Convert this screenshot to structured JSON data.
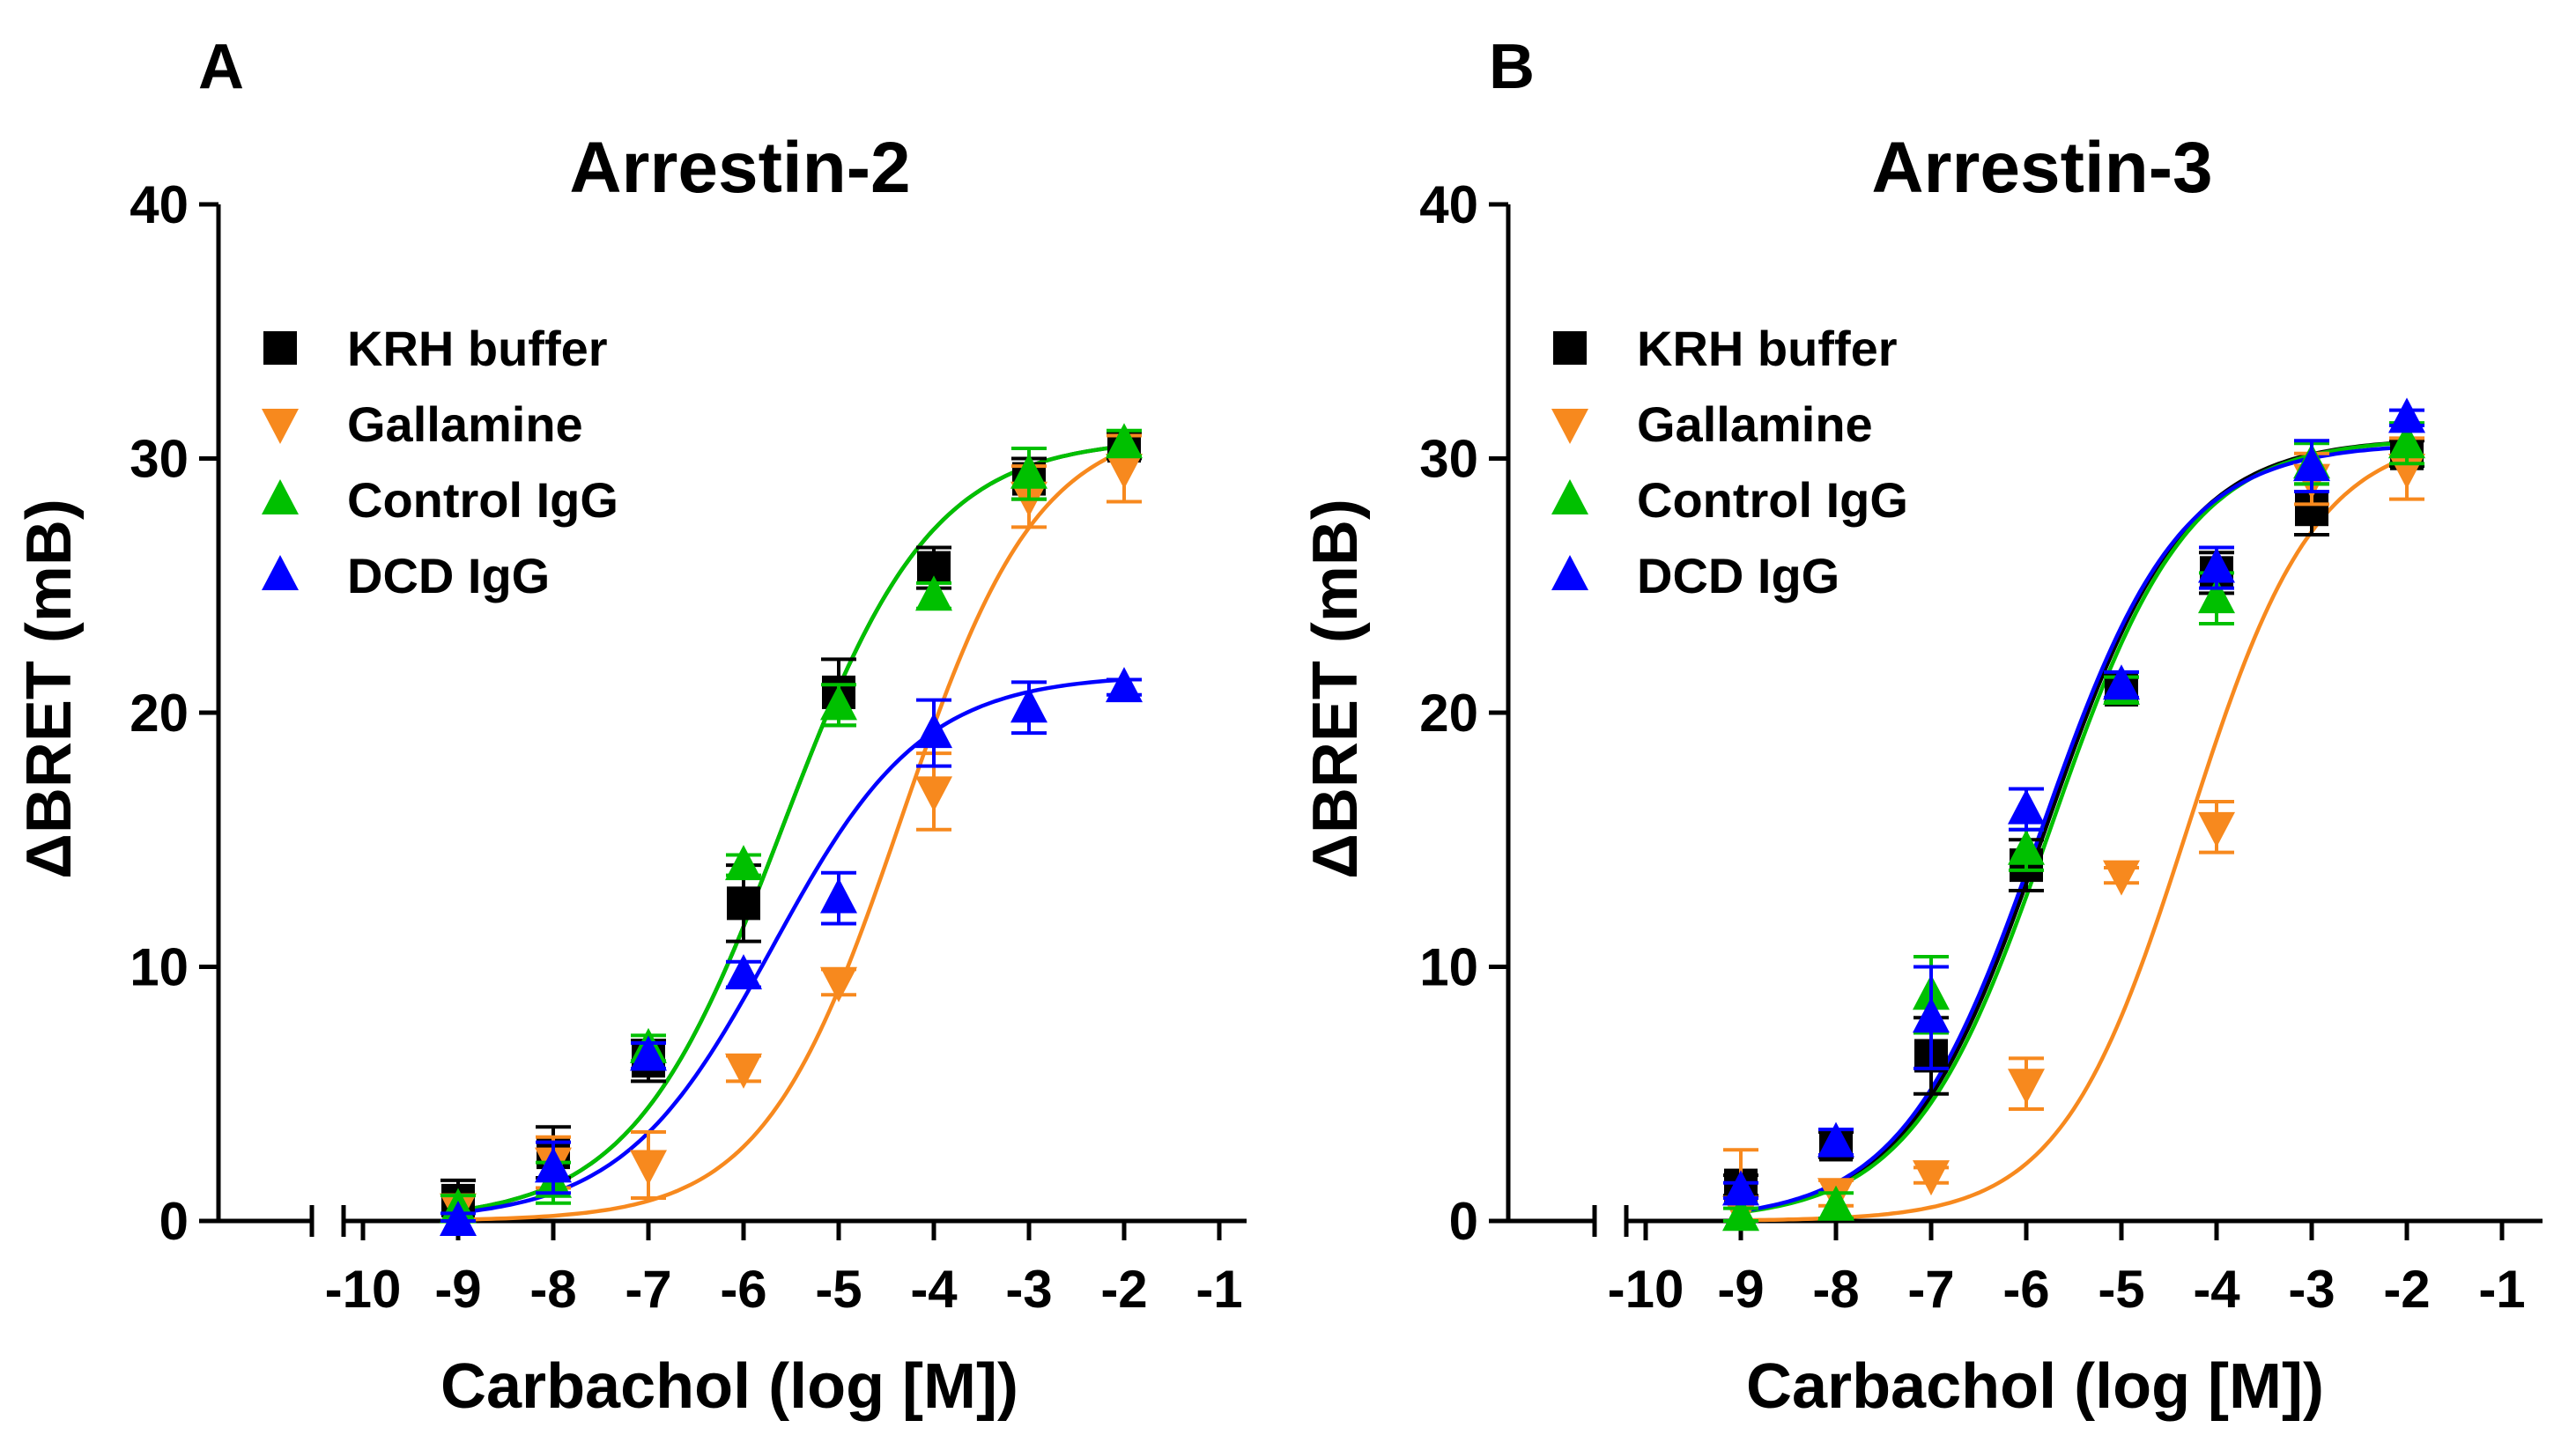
{
  "chart_data": [
    {
      "type": "line",
      "panel_label": "A",
      "title": "Arrestin-2",
      "xlabel": "Carbachol (log [M])",
      "ylabel": "ΔBRET (mB)",
      "xlim": [
        -10,
        -1
      ],
      "ylim": [
        0,
        40
      ],
      "xticks": [
        "-10",
        "-9",
        "-8",
        "-7",
        "-6",
        "-5",
        "-4",
        "-3",
        "-2",
        "-1"
      ],
      "yticks": [
        "0",
        "10",
        "20",
        "30",
        "40"
      ],
      "legend_position": "top-left",
      "x": [
        -9,
        -8,
        -7,
        -6,
        -5,
        -4,
        -3,
        -2
      ],
      "series": [
        {
          "name": "KRH buffer",
          "color": "#000000",
          "marker": "square",
          "values": [
            0.8,
            2.7,
            6.3,
            12.5,
            20.8,
            25.7,
            29.2,
            30.5
          ],
          "errors": [
            0.8,
            1.0,
            0.8,
            1.5,
            1.3,
            0.8,
            0.8,
            0.5
          ],
          "fit": {
            "bottom": 0,
            "top": 30.8,
            "logEC50": -5.6,
            "hill": 0.55
          }
        },
        {
          "name": "Gallamine",
          "color": "#F7891E",
          "marker": "triangle-down",
          "values": [
            0.5,
            2.3,
            2.2,
            6.0,
            9.4,
            16.9,
            28.5,
            29.6
          ],
          "errors": [
            0.5,
            1.0,
            1.3,
            0.5,
            0.5,
            1.5,
            1.2,
            1.3
          ],
          "fit": {
            "bottom": 0,
            "top": 31.5,
            "logEC50": -4.35,
            "hill": 0.6
          }
        },
        {
          "name": "Control IgG",
          "color": "#00C000",
          "marker": "triangle-up",
          "values": [
            0.5,
            1.5,
            6.8,
            14.0,
            20.3,
            24.6,
            29.4,
            30.6
          ],
          "errors": [
            0.5,
            0.8,
            0.5,
            0.4,
            0.8,
            0.5,
            1.0,
            0.5
          ],
          "fit": {
            "bottom": 0,
            "top": 30.8,
            "logEC50": -5.6,
            "hill": 0.55
          }
        },
        {
          "name": "DCD IgG",
          "color": "#0000FF",
          "marker": "triangle-up",
          "values": [
            0.0,
            2.1,
            6.5,
            9.7,
            12.7,
            19.2,
            20.2,
            21.0
          ],
          "errors": [
            0.3,
            1.0,
            0.5,
            0.5,
            1.0,
            1.3,
            1.0,
            0.3
          ],
          "fit": {
            "bottom": 0,
            "top": 21.5,
            "logEC50": -5.7,
            "hill": 0.55
          }
        }
      ]
    },
    {
      "type": "line",
      "panel_label": "B",
      "title": "Arrestin-3",
      "xlabel": "Carbachol (log [M])",
      "ylabel": "ΔBRET (mB)",
      "xlim": [
        -10,
        -1
      ],
      "ylim": [
        0,
        40
      ],
      "xticks": [
        "-10",
        "-9",
        "-8",
        "-7",
        "-6",
        "-5",
        "-4",
        "-3",
        "-2",
        "-1"
      ],
      "yticks": [
        "0",
        "10",
        "20",
        "30",
        "40"
      ],
      "legend_position": "top-left",
      "x": [
        -9,
        -8,
        -7,
        -6,
        -5,
        -4,
        -3,
        -2
      ],
      "series": [
        {
          "name": "KRH buffer",
          "color": "#000000",
          "marker": "square",
          "values": [
            1.4,
            3.0,
            6.5,
            14.0,
            20.9,
            25.5,
            28.0,
            30.2
          ],
          "errors": [
            0.4,
            0.5,
            1.5,
            1.0,
            0.5,
            0.8,
            1.0,
            0.5
          ],
          "fit": {
            "bottom": 0,
            "top": 30.8,
            "logEC50": -5.8,
            "hill": 0.6
          }
        },
        {
          "name": "Gallamine",
          "color": "#F7891E",
          "marker": "triangle-down",
          "values": [
            0.4,
            1.1,
            1.8,
            5.4,
            13.6,
            15.5,
            29.2,
            29.6
          ],
          "errors": [
            2.4,
            0.5,
            0.3,
            1.0,
            0.3,
            1.0,
            1.0,
            1.2
          ],
          "fit": {
            "bottom": 0,
            "top": 31.0,
            "logEC50": -4.3,
            "hill": 0.65
          }
        },
        {
          "name": "Control  IgG",
          "color": "#00C000",
          "marker": "triangle-up",
          "values": [
            0.2,
            0.6,
            8.9,
            14.6,
            20.9,
            24.5,
            29.8,
            30.6
          ],
          "errors": [
            0.3,
            0.5,
            1.5,
            0.8,
            0.5,
            1.0,
            0.8,
            0.8
          ],
          "fit": {
            "bottom": 0,
            "top": 30.8,
            "logEC50": -5.75,
            "hill": 0.6
          }
        },
        {
          "name": "DCD IgG",
          "color": "#0000FF",
          "marker": "triangle-up",
          "values": [
            1.2,
            3.1,
            8.0,
            16.2,
            21.1,
            25.7,
            29.7,
            31.6
          ],
          "errors": [
            0.3,
            0.5,
            2.0,
            0.8,
            0.5,
            0.8,
            1.0,
            0.3
          ],
          "fit": {
            "bottom": 0,
            "top": 30.6,
            "logEC50": -5.85,
            "hill": 0.6
          }
        }
      ]
    }
  ]
}
